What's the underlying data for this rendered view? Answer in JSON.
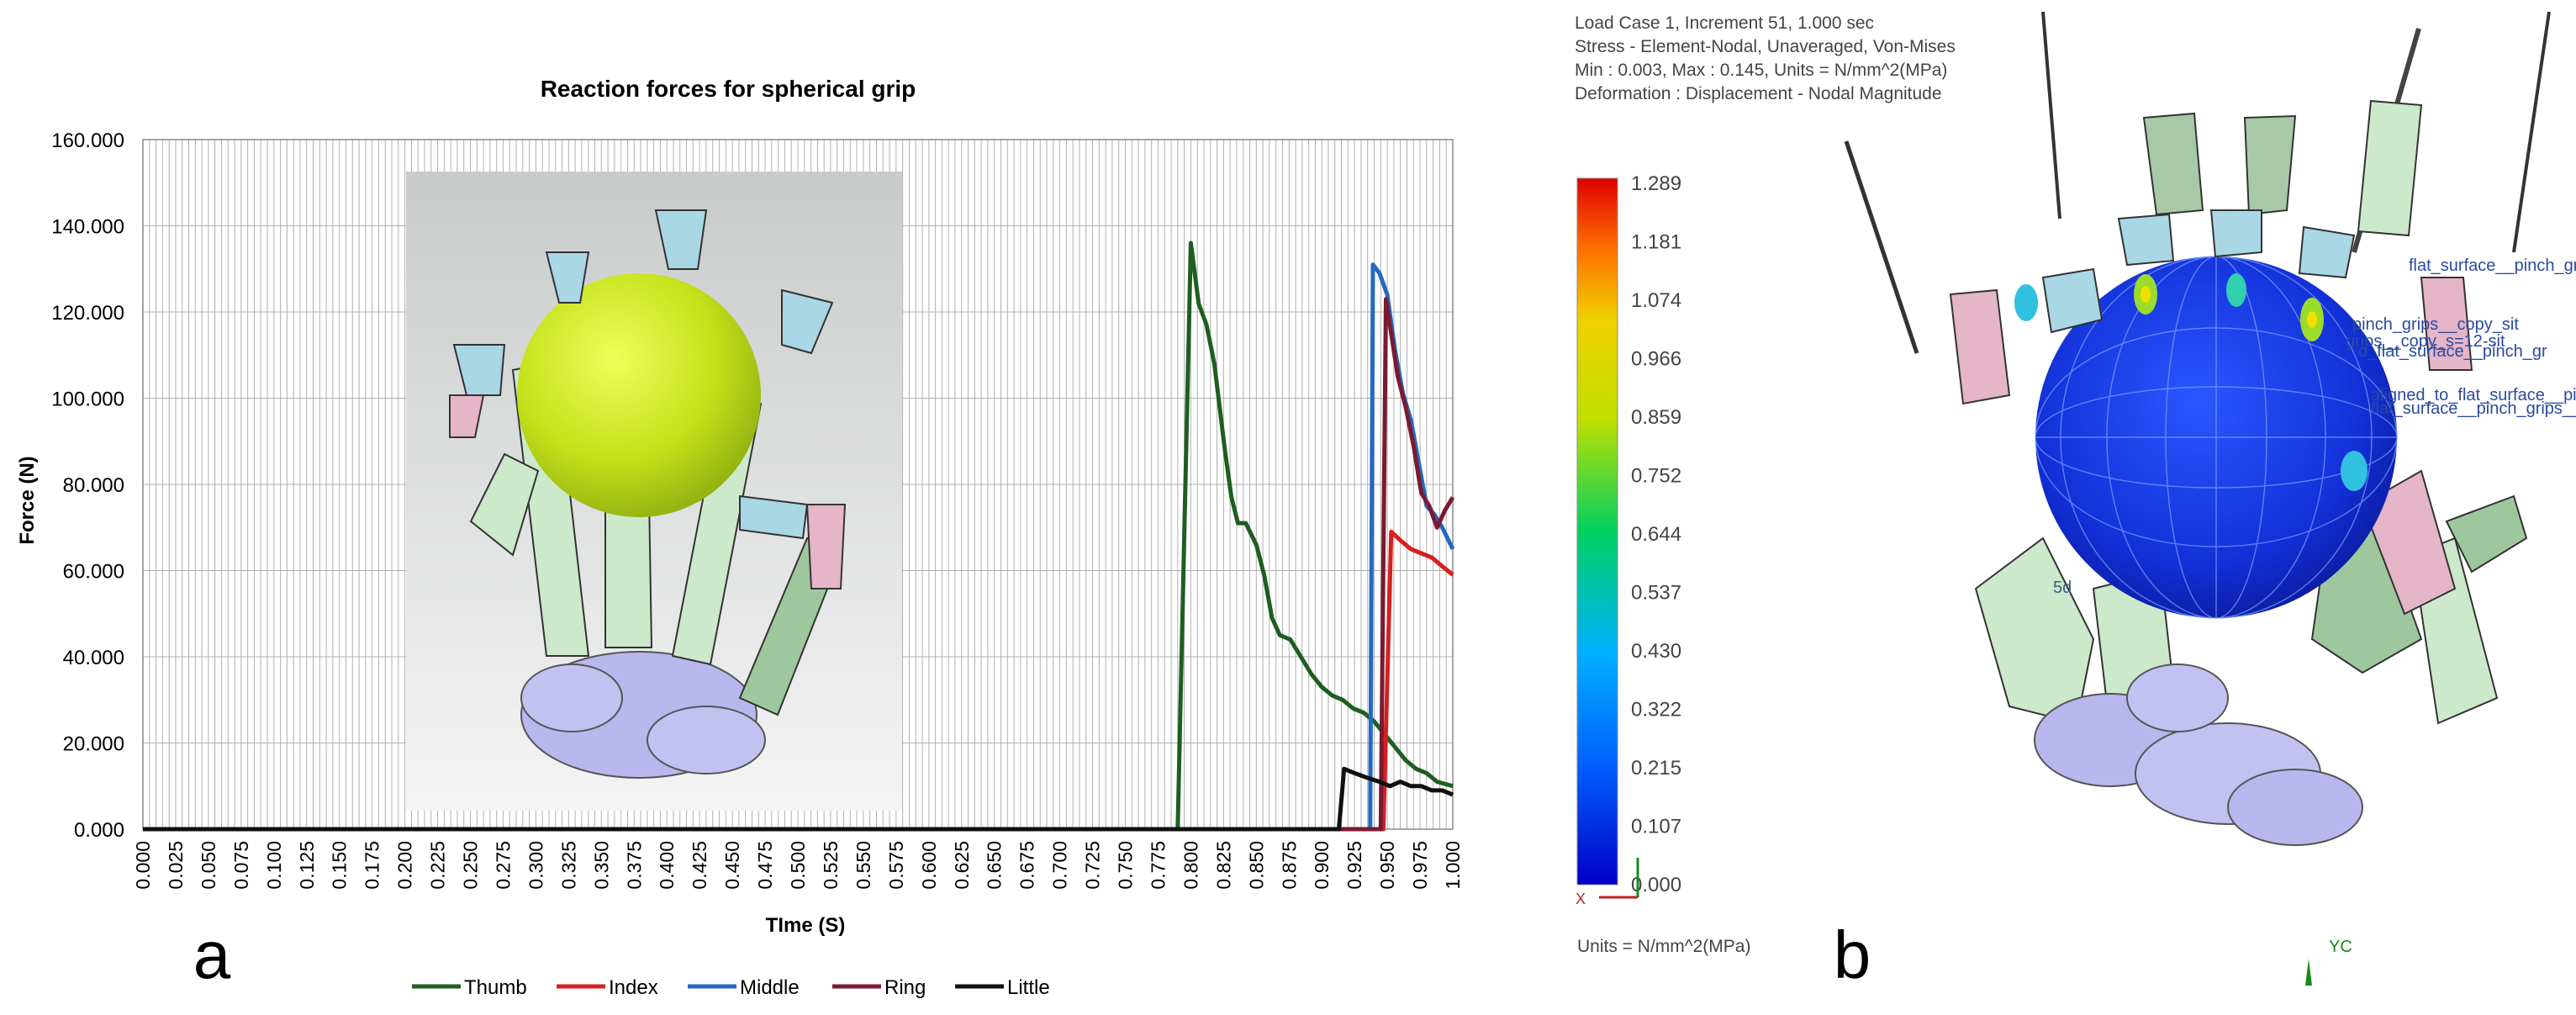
{
  "chart_data": {
    "type": "line",
    "title": "Reaction forces for spherical grip",
    "xlabel": "TIme (S)",
    "ylabel": "Force (N)",
    "panel_label": "a",
    "xlim": [
      0.0,
      1.0
    ],
    "ylim": [
      0,
      160
    ],
    "grid": true,
    "legend_position": "bottom",
    "x_ticks": [
      "0.000",
      "0.025",
      "0.050",
      "0.075",
      "0.100",
      "0.125",
      "0.150",
      "0.175",
      "0.200",
      "0.225",
      "0.250",
      "0.275",
      "0.300",
      "0.325",
      "0.350",
      "0.375",
      "0.400",
      "0.425",
      "0.450",
      "0.475",
      "0.500",
      "0.525",
      "0.550",
      "0.575",
      "0.600",
      "0.625",
      "0.650",
      "0.675",
      "0.700",
      "0.725",
      "0.750",
      "0.775",
      "0.800",
      "0.825",
      "0.850",
      "0.875",
      "0.900",
      "0.925",
      "0.950",
      "0.975",
      "1.000"
    ],
    "y_ticks": [
      "0.000",
      "20.000",
      "40.000",
      "60.000",
      "80.000",
      "100.000",
      "120.000",
      "140.000",
      "160.000"
    ],
    "series": [
      {
        "name": "Thumb",
        "color": "#1e5e20",
        "points": [
          [
            0,
            0
          ],
          [
            0.79,
            0
          ],
          [
            0.79,
            0
          ],
          [
            0.8,
            136
          ],
          [
            0.806,
            122
          ],
          [
            0.812,
            117
          ],
          [
            0.818,
            108
          ],
          [
            0.826,
            88
          ],
          [
            0.831,
            77
          ],
          [
            0.836,
            71
          ],
          [
            0.842,
            71
          ],
          [
            0.85,
            66
          ],
          [
            0.856,
            59
          ],
          [
            0.862,
            49
          ],
          [
            0.868,
            45
          ],
          [
            0.876,
            44
          ],
          [
            0.884,
            40
          ],
          [
            0.892,
            36
          ],
          [
            0.9,
            33
          ],
          [
            0.908,
            31
          ],
          [
            0.916,
            30
          ],
          [
            0.924,
            28
          ],
          [
            0.932,
            27
          ],
          [
            0.94,
            25
          ],
          [
            0.948,
            22
          ],
          [
            0.956,
            19
          ],
          [
            0.964,
            16
          ],
          [
            0.972,
            14
          ],
          [
            0.98,
            13
          ],
          [
            0.988,
            11
          ],
          [
            1.0,
            10
          ]
        ]
      },
      {
        "name": "Index",
        "color": "#d62020",
        "points": [
          [
            0,
            0
          ],
          [
            0.947,
            0
          ],
          [
            0.953,
            69
          ],
          [
            0.96,
            67
          ],
          [
            0.968,
            65
          ],
          [
            0.976,
            64
          ],
          [
            0.984,
            63
          ],
          [
            0.992,
            61
          ],
          [
            1.0,
            59
          ]
        ]
      },
      {
        "name": "Middle",
        "color": "#2469c2",
        "points": [
          [
            0,
            0
          ],
          [
            0.937,
            0
          ],
          [
            0.939,
            131
          ],
          [
            0.944,
            129
          ],
          [
            0.95,
            124
          ],
          [
            0.956,
            111
          ],
          [
            0.962,
            101
          ],
          [
            0.968,
            95
          ],
          [
            0.974,
            85
          ],
          [
            0.98,
            75
          ],
          [
            0.986,
            73
          ],
          [
            0.992,
            70
          ],
          [
            1.0,
            65
          ]
        ]
      },
      {
        "name": "Ring",
        "color": "#7a1a30",
        "points": [
          [
            0,
            0
          ],
          [
            0.945,
            0
          ],
          [
            0.949,
            123
          ],
          [
            0.954,
            113
          ],
          [
            0.958,
            105
          ],
          [
            0.964,
            98
          ],
          [
            0.97,
            89
          ],
          [
            0.976,
            78
          ],
          [
            0.982,
            75
          ],
          [
            0.988,
            70
          ],
          [
            0.994,
            74
          ],
          [
            1.0,
            77
          ]
        ]
      },
      {
        "name": "Little",
        "color": "#101010",
        "points": [
          [
            0,
            0
          ],
          [
            0.913,
            0
          ],
          [
            0.917,
            14
          ],
          [
            0.925,
            13
          ],
          [
            0.934,
            12
          ],
          [
            0.944,
            11
          ],
          [
            0.952,
            10
          ],
          [
            0.96,
            11
          ],
          [
            0.968,
            10
          ],
          [
            0.976,
            10
          ],
          [
            0.984,
            9
          ],
          [
            0.992,
            9
          ],
          [
            1.0,
            8
          ]
        ]
      }
    ]
  },
  "panel_b": {
    "panel_label": "b",
    "header_lines": [
      "Load Case 1, Increment 51, 1.000 sec",
      "Stress - Element-Nodal, Unaveraged, Von-Mises",
      "Min : 0.003, Max : 0.145, Units = N/mm^2(MPa)",
      "Deformation : Displacement - Nodal Magnitude"
    ],
    "colorbar_values": [
      "1.289",
      "1.181",
      "1.074",
      "0.966",
      "0.859",
      "0.752",
      "0.644",
      "0.537",
      "0.430",
      "0.322",
      "0.215",
      "0.107",
      "0.000"
    ],
    "units_label": "Units = N/mm^2(MPa)",
    "axis_x_label": "X",
    "axis_y_label": "YC",
    "label_5d": "5d",
    "model_labels": [
      "flat_surface__pinch_grips__",
      "pinch_grips__copy_sit",
      "grips__copy_s=12-sit",
      "o_flat_surface__pinch_gr",
      "aligned_to_flat_surface__pi",
      "flat_surface__pinch_grips__"
    ]
  }
}
